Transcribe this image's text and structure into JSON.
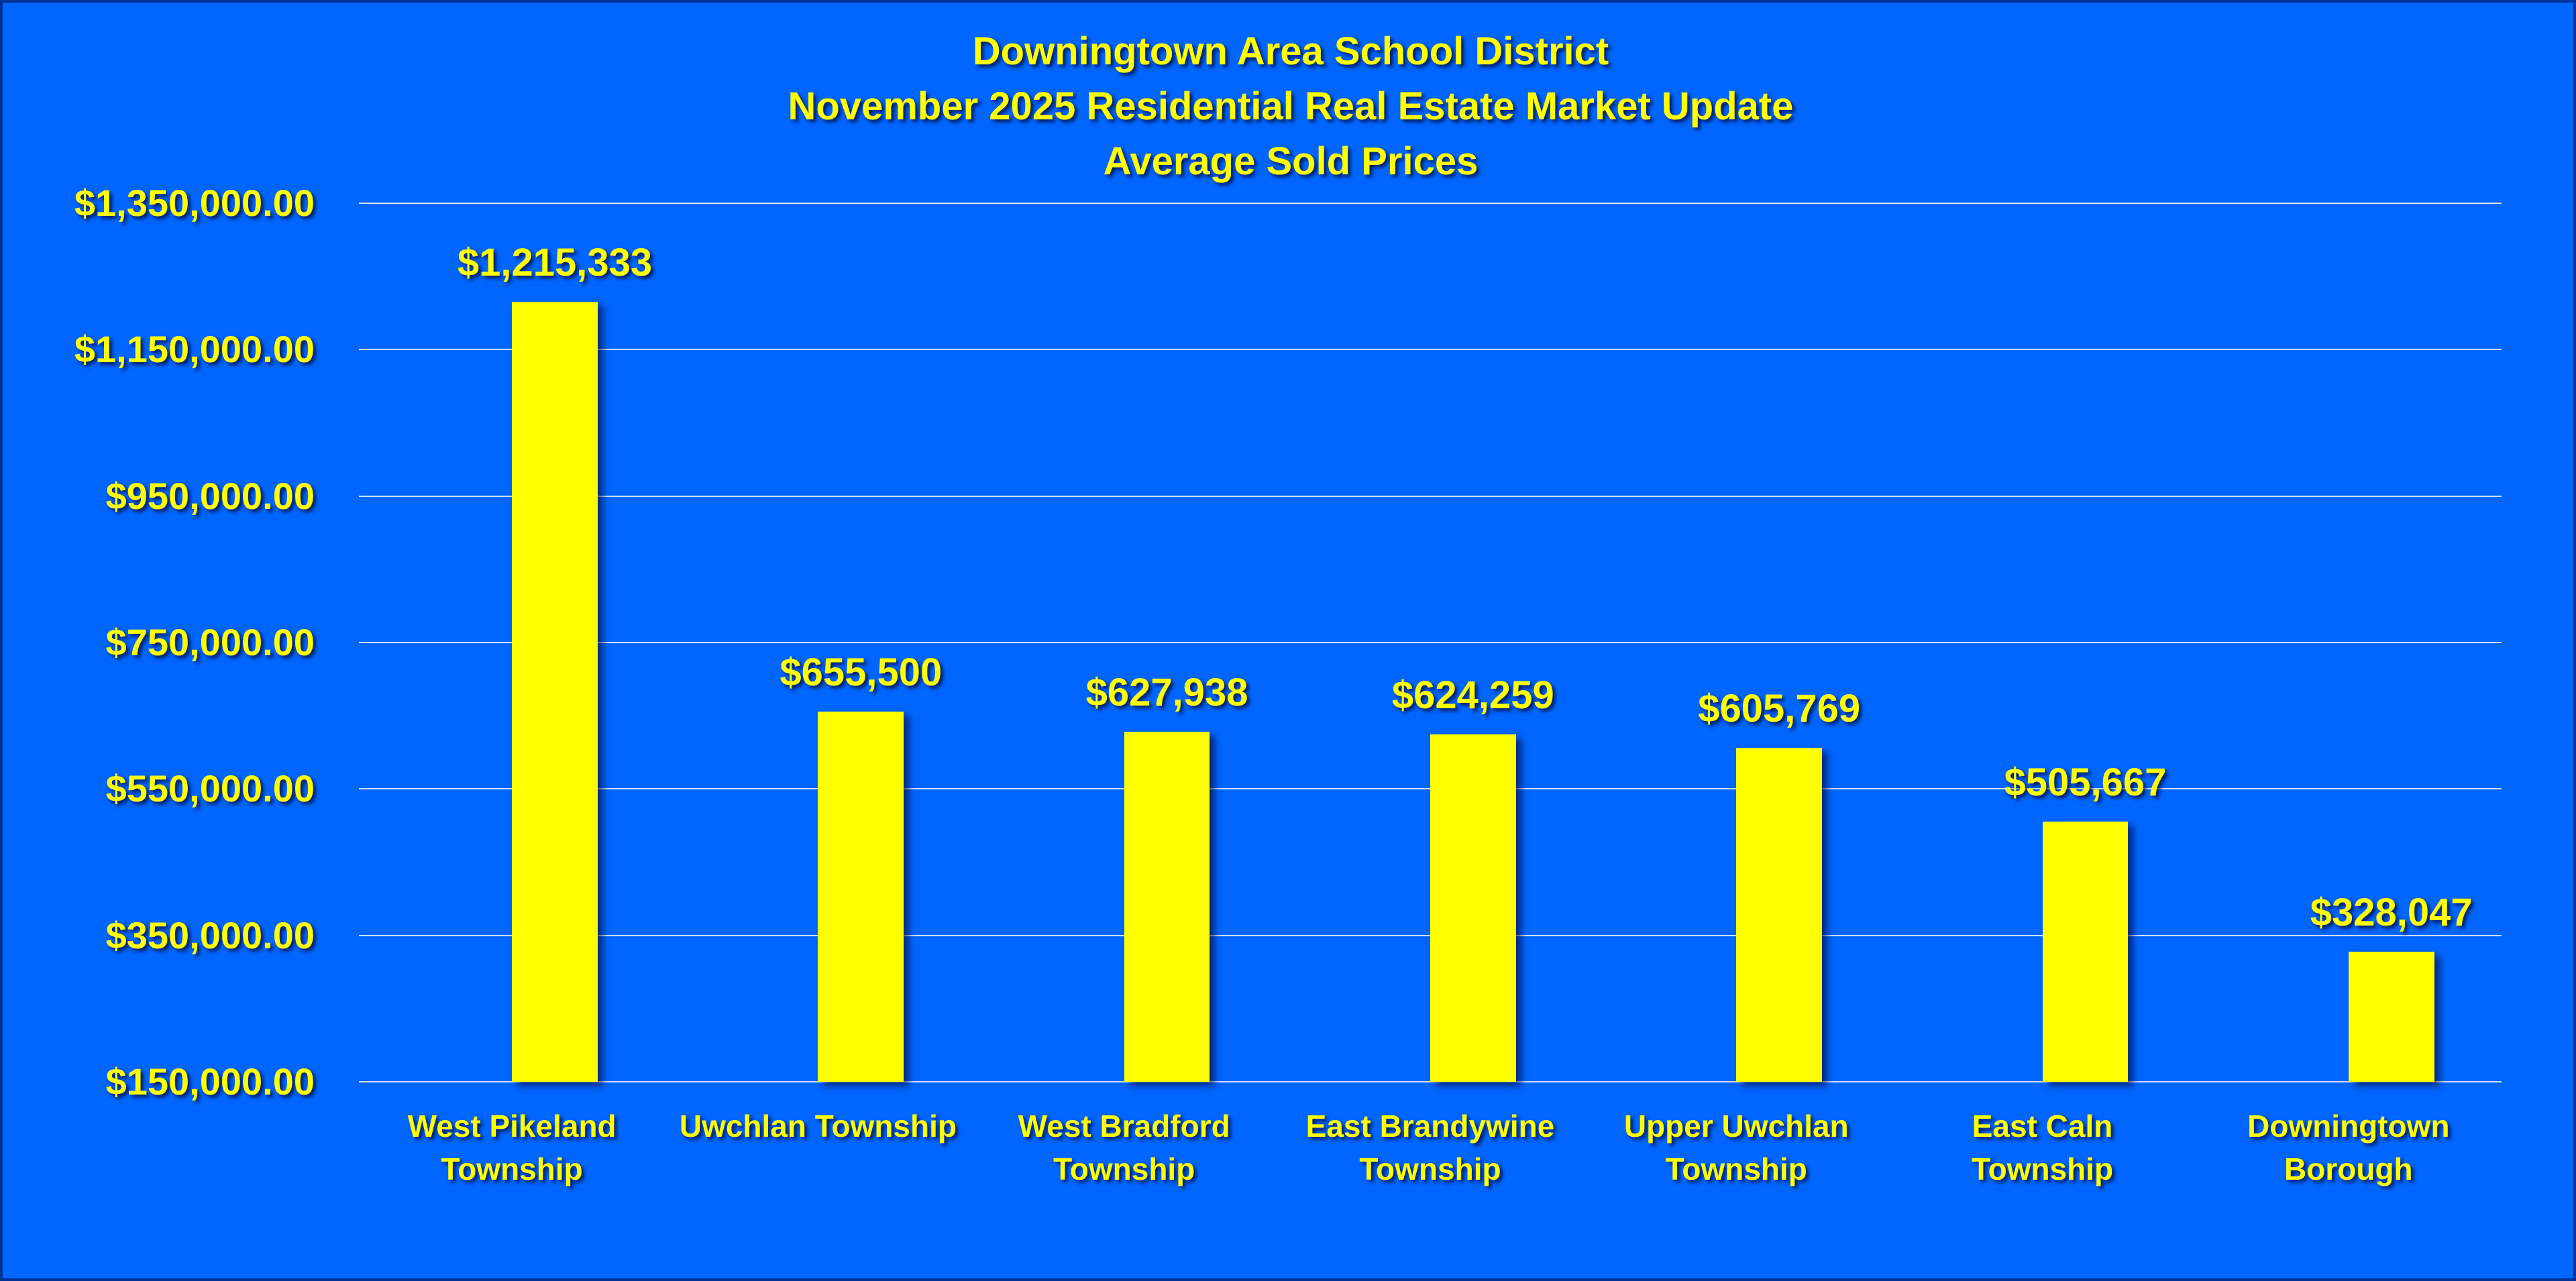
{
  "chart_data": {
    "type": "bar",
    "title": [
      "Downingtown Area School District",
      "November 2025 Residential Real Estate Market Update",
      "Average Sold Prices"
    ],
    "categories": [
      "West Pikeland Township",
      "Uwchlan Township",
      "West Bradford Township",
      "East Brandywine Township",
      "Upper Uwchlan Township",
      "East Caln Township",
      "Downingtown Borough"
    ],
    "values": [
      1215333,
      655500,
      627938,
      624259,
      605769,
      505667,
      328047
    ],
    "value_labels": [
      "$1,215,333",
      "$655,500",
      "$627,938",
      "$624,259",
      "$605,769",
      "$505,667",
      "$328,047"
    ],
    "color": "#ffff00",
    "ylim": [
      150000,
      1350000
    ],
    "yticks": [
      {
        "value": 150000,
        "label": "$150,000.00"
      },
      {
        "value": 350000,
        "label": "$350,000.00"
      },
      {
        "value": 550000,
        "label": "$550,000.00"
      },
      {
        "value": 750000,
        "label": "$750,000.00"
      },
      {
        "value": 950000,
        "label": "$950,000.00"
      },
      {
        "value": 1150000,
        "label": "$1,150,000.00"
      },
      {
        "value": 1350000,
        "label": "$1,350,000.00"
      }
    ],
    "grid": true
  }
}
